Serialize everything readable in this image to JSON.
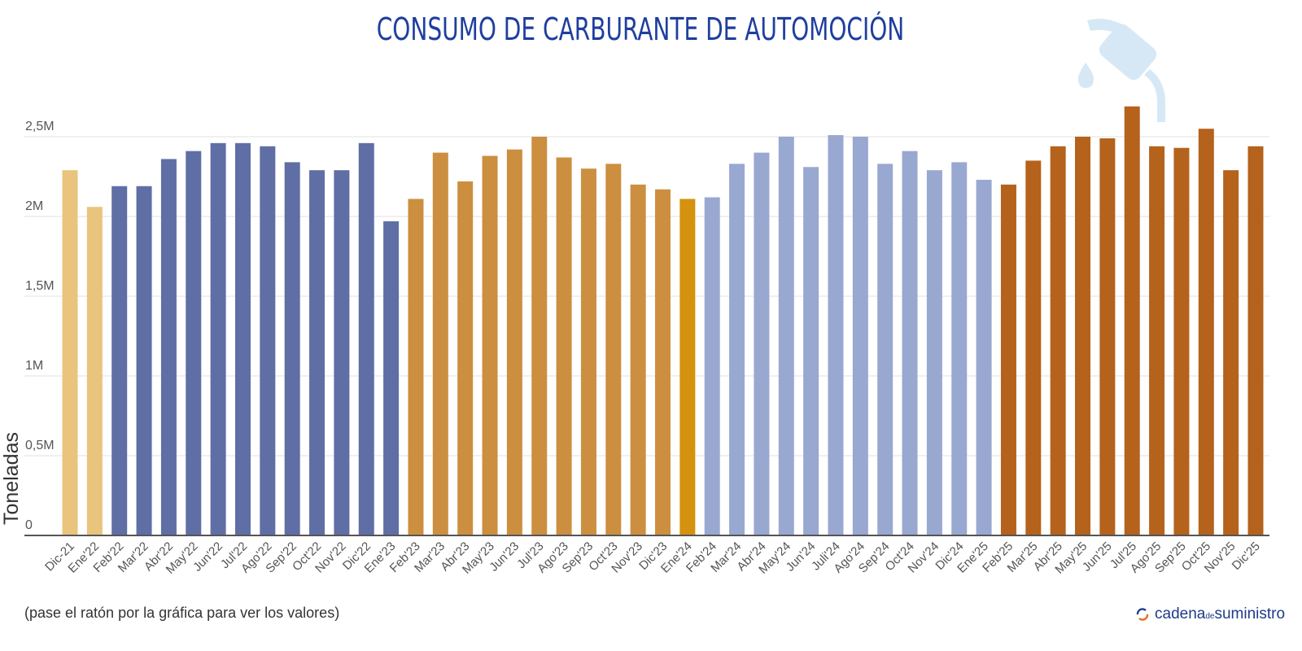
{
  "title": "CONSUMO DE CARBURANTE DE AUTOMOCIÓN",
  "note": "(pase el ratón por la gráfica para ver los valores)",
  "brand": {
    "part1": "cadena",
    "part2": "de",
    "part3": "suministro",
    "icon": "refresh-arrows-icon"
  },
  "decoration_icon": "fuel-nozzle-icon",
  "colors": {
    "title": "#1f3f9e",
    "2021": "#e9c47d",
    "2022": "#5f6fa5",
    "2023": "#cc8f40",
    "highlight": "#d4920e",
    "2024": "#99a8d1",
    "2025": "#b5621d",
    "decoration": "#d6e8f5"
  },
  "chart_data": {
    "type": "bar",
    "title": "CONSUMO DE CARBURANTE DE AUTOMOCIÓN",
    "xlabel": "",
    "ylabel": "Toneladas",
    "ylim": [
      0,
      2500000
    ],
    "yticks": [
      {
        "v": 0,
        "label": "0"
      },
      {
        "v": 500000,
        "label": "0,5M"
      },
      {
        "v": 1000000,
        "label": "1M"
      },
      {
        "v": 1500000,
        "label": "1,5M"
      },
      {
        "v": 2000000,
        "label": "2M"
      },
      {
        "v": 2500000,
        "label": "2,5M"
      }
    ],
    "grid": true,
    "categories": [
      "Dic-21",
      "Ene'22",
      "Feb'22",
      "Mar'22",
      "Abr'22",
      "May'22",
      "Jun'22",
      "Jul'22",
      "Ago'22",
      "Sep'22",
      "Oct'22",
      "Nov'22",
      "Dic'22",
      "Ene'23",
      "Feb'23",
      "Mar'23",
      "Abr'23",
      "May'23",
      "Jun'23",
      "Jul'23",
      "Ago'23",
      "Sep'23",
      "Oct'23",
      "Nov'23",
      "Dic'23",
      "Ene'24",
      "Feb'24",
      "Mar'24",
      "Abr'24",
      "May'24",
      "Jun'24",
      "Juli'24",
      "Ago'24",
      "Sep'24",
      "Oct'24",
      "Nov'24",
      "Dic'24",
      "Ene'25",
      "Feb'25",
      "Mar'25",
      "Abr'25",
      "May'25",
      "Jun'25",
      "Jul'25",
      "Ago'25",
      "Sep'25",
      "Oct'25",
      "Nov'25",
      "Dic'25"
    ],
    "values": [
      2290000,
      2060000,
      2190000,
      2190000,
      2360000,
      2410000,
      2460000,
      2460000,
      2440000,
      2340000,
      2290000,
      2290000,
      2460000,
      1970000,
      2110000,
      2400000,
      2220000,
      2380000,
      2420000,
      2500000,
      2370000,
      2300000,
      2330000,
      2200000,
      2170000,
      2110000,
      2120000,
      2330000,
      2400000,
      2500000,
      2310000,
      2510000,
      2500000,
      2330000,
      2410000,
      2290000,
      2340000,
      2230000,
      2200000,
      2350000,
      2440000,
      2500000,
      2490000,
      2690000,
      2440000,
      2430000,
      2550000,
      2290000,
      2440000
    ],
    "bar_color_groups": [
      "2021",
      "2021",
      "2022",
      "2022",
      "2022",
      "2022",
      "2022",
      "2022",
      "2022",
      "2022",
      "2022",
      "2022",
      "2022",
      "2022",
      "2023",
      "2023",
      "2023",
      "2023",
      "2023",
      "2023",
      "2023",
      "2023",
      "2023",
      "2023",
      "2023",
      "highlight",
      "2024",
      "2024",
      "2024",
      "2024",
      "2024",
      "2024",
      "2024",
      "2024",
      "2024",
      "2024",
      "2024",
      "2024",
      "2025",
      "2025",
      "2025",
      "2025",
      "2025",
      "2025",
      "2025",
      "2025",
      "2025",
      "2025",
      "2025"
    ]
  }
}
